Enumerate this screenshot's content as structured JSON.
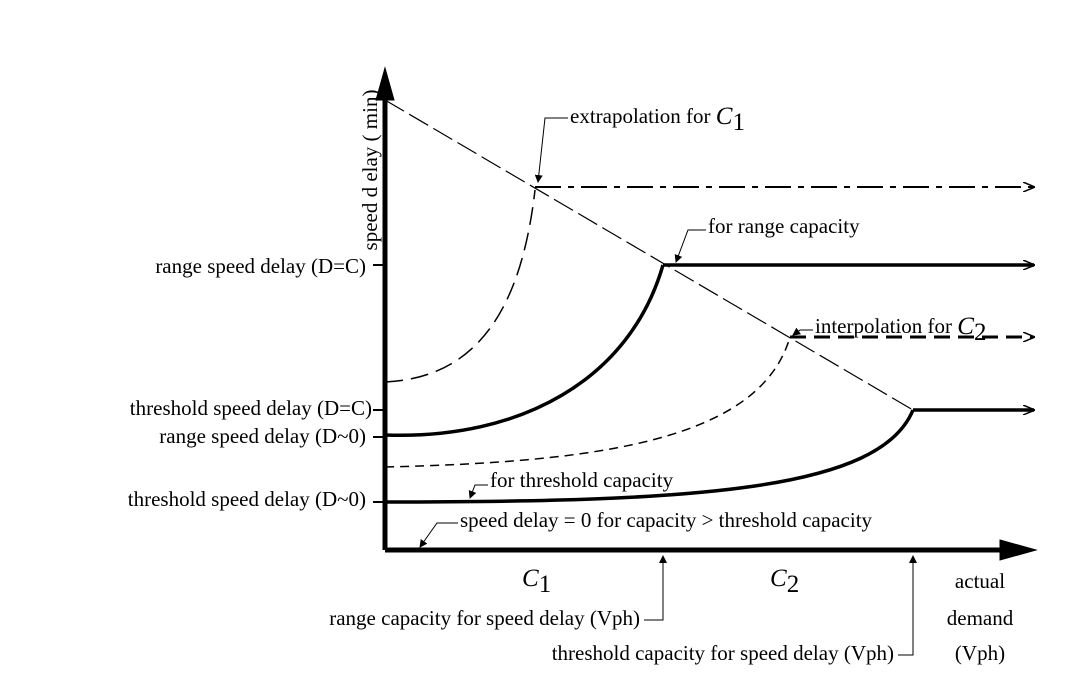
{
  "axis": {
    "y_label": "speed d elay ( min)"
  },
  "y_labels": [
    "range speed delay (D=C)",
    "threshold speed delay (D=C)",
    "range speed delay (D~0)",
    "threshold speed delay (D~0)"
  ],
  "x_labels": [
    {
      "letter": "C",
      "sub": "1"
    },
    {
      "letter": "C",
      "sub": "2"
    }
  ],
  "x_notes": [
    "range capacity for speed delay (Vph)",
    "threshold capacity for speed delay (Vph)"
  ],
  "x_axis_title": [
    "actual",
    "demand",
    "(Vph)"
  ],
  "annotations": {
    "extrapolation": {
      "text": "extrapolation for ",
      "letter": "C",
      "sub": "1"
    },
    "range": "for range capacity",
    "interpolation": {
      "text": "interpolation for ",
      "letter": "C",
      "sub": "2"
    },
    "threshold": "for threshold capacity",
    "zero": "speed delay = 0 for capacity > threshold capacity"
  }
}
